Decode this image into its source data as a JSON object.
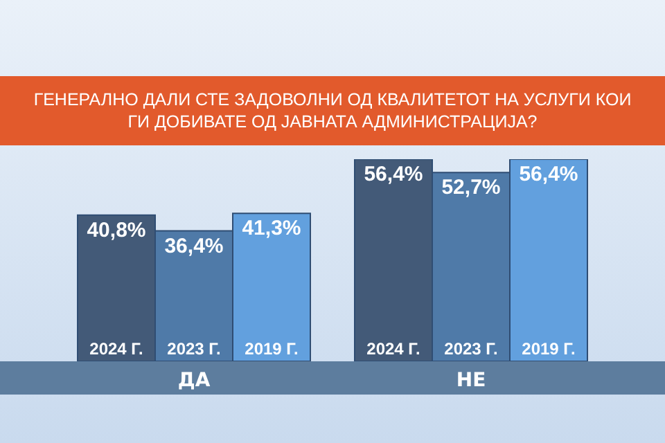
{
  "chart_data": {
    "type": "bar",
    "title": "ГЕНЕРАЛНО ДАЛИ СТЕ ЗАДОВОЛНИ ОД КВАЛИТЕТОТ НА УСЛУГИ КОИ ГИ ДОБИВАТЕ ОД ЈАВНАТА АДМИНИСТРАЦИЈА?",
    "categories": [
      "ДА",
      "НЕ"
    ],
    "series": [
      {
        "name": "2024 Г.",
        "color": "#435a78",
        "values": [
          40.8,
          56.4
        ],
        "value_labels": [
          "40,8%",
          "56,4%"
        ]
      },
      {
        "name": "2023 Г.",
        "color": "#4f7aa8",
        "values": [
          36.4,
          52.7
        ],
        "value_labels": [
          "36,4%",
          "52,7%"
        ]
      },
      {
        "name": "2019 Г.",
        "color": "#62a0de",
        "values": [
          41.3,
          56.4
        ],
        "value_labels": [
          "41,3%",
          "56,4%"
        ]
      }
    ]
  }
}
